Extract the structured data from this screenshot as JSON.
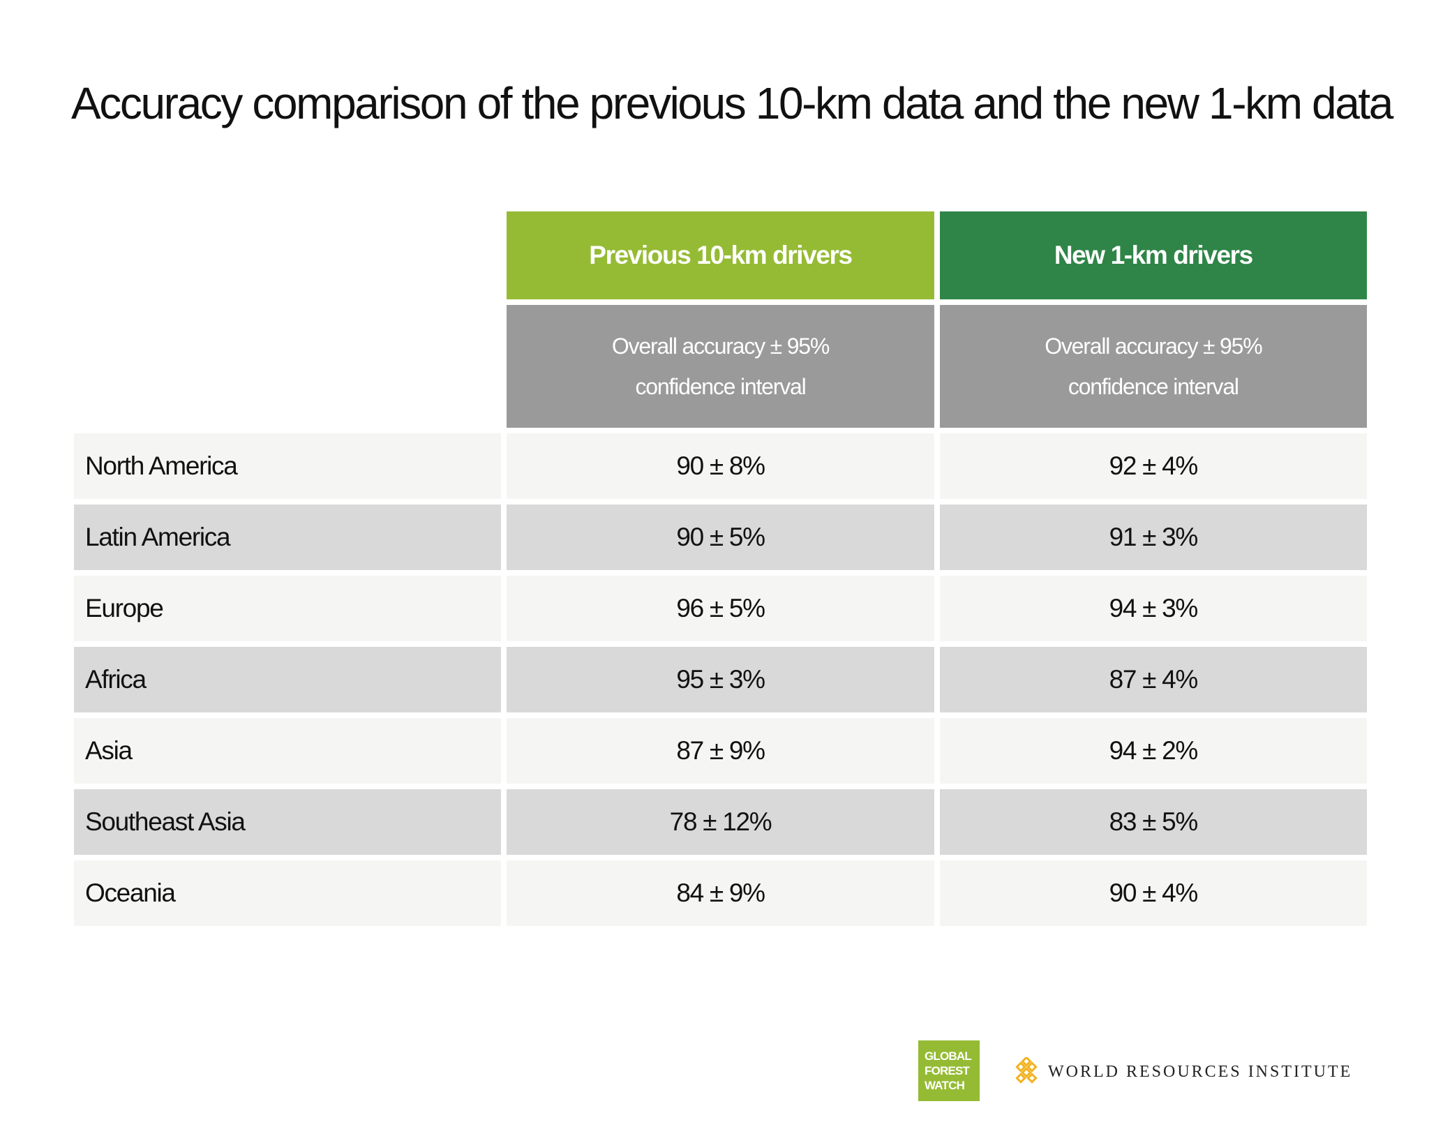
{
  "title": "Accuracy comparison of the previous 10-km data and the new 1-km data",
  "chart_data": {
    "type": "table",
    "title": "Accuracy comparison of the previous 10-km data and the new 1-km data",
    "columns": [
      {
        "name": "Previous 10-km drivers",
        "subheader": [
          "Overall accuracy ± 95%",
          "confidence interval"
        ],
        "color": "#95bb34"
      },
      {
        "name": "New 1-km drivers",
        "subheader": [
          "Overall accuracy ± 95%",
          "confidence interval"
        ],
        "color": "#2f8547"
      }
    ],
    "rows": [
      {
        "region": "North America",
        "values": [
          "90 ± 8%",
          "92 ± 4%"
        ]
      },
      {
        "region": "Latin America",
        "values": [
          "90 ± 5%",
          "91 ± 3%"
        ]
      },
      {
        "region": "Europe",
        "values": [
          "96 ± 5%",
          "94 ± 3%"
        ]
      },
      {
        "region": "Africa",
        "values": [
          "95 ± 3%",
          "87 ± 4%"
        ]
      },
      {
        "region": "Asia",
        "values": [
          "87 ± 9%",
          "94 ± 2%"
        ]
      },
      {
        "region": "Southeast Asia",
        "values": [
          "78 ± 12%",
          "83 ± 5%"
        ]
      },
      {
        "region": "Oceania",
        "values": [
          "84 ± 9%",
          "90 ± 4%"
        ]
      }
    ],
    "colors": {
      "previous_header": "#95bb34",
      "new_header": "#2f8547",
      "subheader": "#9a9a9a",
      "row_light": "#f5f5f3",
      "row_dark": "#d9d9d9"
    }
  },
  "logos": {
    "gfw": [
      "GLOBAL",
      "FOREST",
      "WATCH"
    ],
    "wri": "WORLD RESOURCES INSTITUTE",
    "wri_icon": "wri-lattice-icon"
  }
}
